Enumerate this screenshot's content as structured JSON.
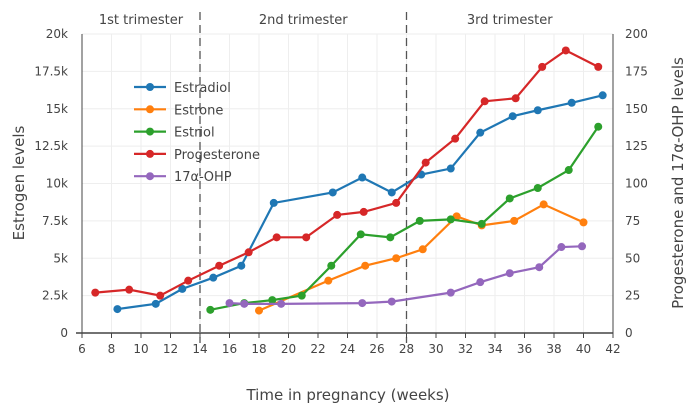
{
  "chart_data": {
    "type": "line",
    "xlabel": "Time in pregnancy (weeks)",
    "ylabel": "Estrogen levels",
    "y2label": "Progesterone and 17α-OHP levels",
    "xlim": [
      6,
      42
    ],
    "ylim": [
      0,
      20000
    ],
    "y2lim": [
      0,
      200
    ],
    "xticks": [
      6,
      8,
      10,
      12,
      14,
      16,
      18,
      20,
      22,
      24,
      26,
      28,
      30,
      32,
      34,
      36,
      38,
      40,
      42
    ],
    "yticks": [
      0,
      2500,
      5000,
      7500,
      10000,
      12500,
      15000,
      17500,
      20000
    ],
    "ytick_labels": [
      "0",
      "2.5k",
      "5k",
      "7.5k",
      "10k",
      "12.5k",
      "15k",
      "17.5k",
      "20k"
    ],
    "y2ticks": [
      0,
      25,
      50,
      75,
      100,
      125,
      150,
      175,
      200
    ],
    "grid": true,
    "legend_placement": "top-left",
    "dividers": [
      14,
      28
    ],
    "regions": [
      {
        "label": "1st trimester",
        "from": 6,
        "to": 14
      },
      {
        "label": "2nd trimester",
        "from": 14,
        "to": 28
      },
      {
        "label": "3rd trimester",
        "from": 28,
        "to": 42
      }
    ],
    "series": [
      {
        "name": "Estradiol",
        "axis": "left",
        "color": "#1f77b4",
        "x": [
          8.4,
          11,
          12.8,
          14.9,
          16.8,
          19,
          23,
          25,
          27,
          29,
          31,
          33,
          35.2,
          36.9,
          39.2,
          41.3
        ],
        "y": [
          1600,
          1950,
          2950,
          3700,
          4500,
          8700,
          9400,
          10400,
          9400,
          10600,
          11000,
          13400,
          14500,
          14900,
          15400,
          15900
        ]
      },
      {
        "name": "Estrone",
        "axis": "left",
        "color": "#ff7f0e",
        "x": [
          18,
          22.7,
          25.2,
          27.3,
          29.1,
          31.4,
          33.1,
          35.3,
          37.3,
          40
        ],
        "y": [
          1500,
          3500,
          4500,
          5000,
          5600,
          7800,
          7200,
          7500,
          8600,
          7400
        ]
      },
      {
        "name": "Estriol",
        "axis": "left",
        "color": "#2ca02c",
        "x": [
          14.7,
          17,
          18.9,
          20.9,
          22.9,
          24.9,
          26.9,
          28.9,
          31,
          33.1,
          35,
          36.9,
          39,
          41
        ],
        "y": [
          1550,
          2000,
          2200,
          2500,
          4500,
          6600,
          6400,
          7500,
          7600,
          7300,
          9000,
          9700,
          10900,
          13800
        ]
      },
      {
        "name": "Progesterone",
        "axis": "right",
        "color": "#d62728",
        "x": [
          6.9,
          9.2,
          11.3,
          13.2,
          15.3,
          17.3,
          19.2,
          21.2,
          23.3,
          25.1,
          27.3,
          29.3,
          31.3,
          33.3,
          35.4,
          37.2,
          38.8,
          41
        ],
        "y": [
          27,
          29,
          25,
          35,
          45,
          54,
          64,
          64,
          79,
          81,
          87,
          114,
          130,
          155,
          157,
          178,
          189,
          178
        ]
      },
      {
        "name": "17α-OHP",
        "axis": "right",
        "color": "#9467bd",
        "x": [
          16,
          17,
          19.5,
          25,
          27,
          31,
          33,
          35,
          37,
          38.5,
          39.9
        ],
        "y": [
          20,
          19.5,
          19.5,
          20,
          21,
          27,
          34,
          40,
          44,
          57.5,
          58
        ]
      }
    ]
  }
}
